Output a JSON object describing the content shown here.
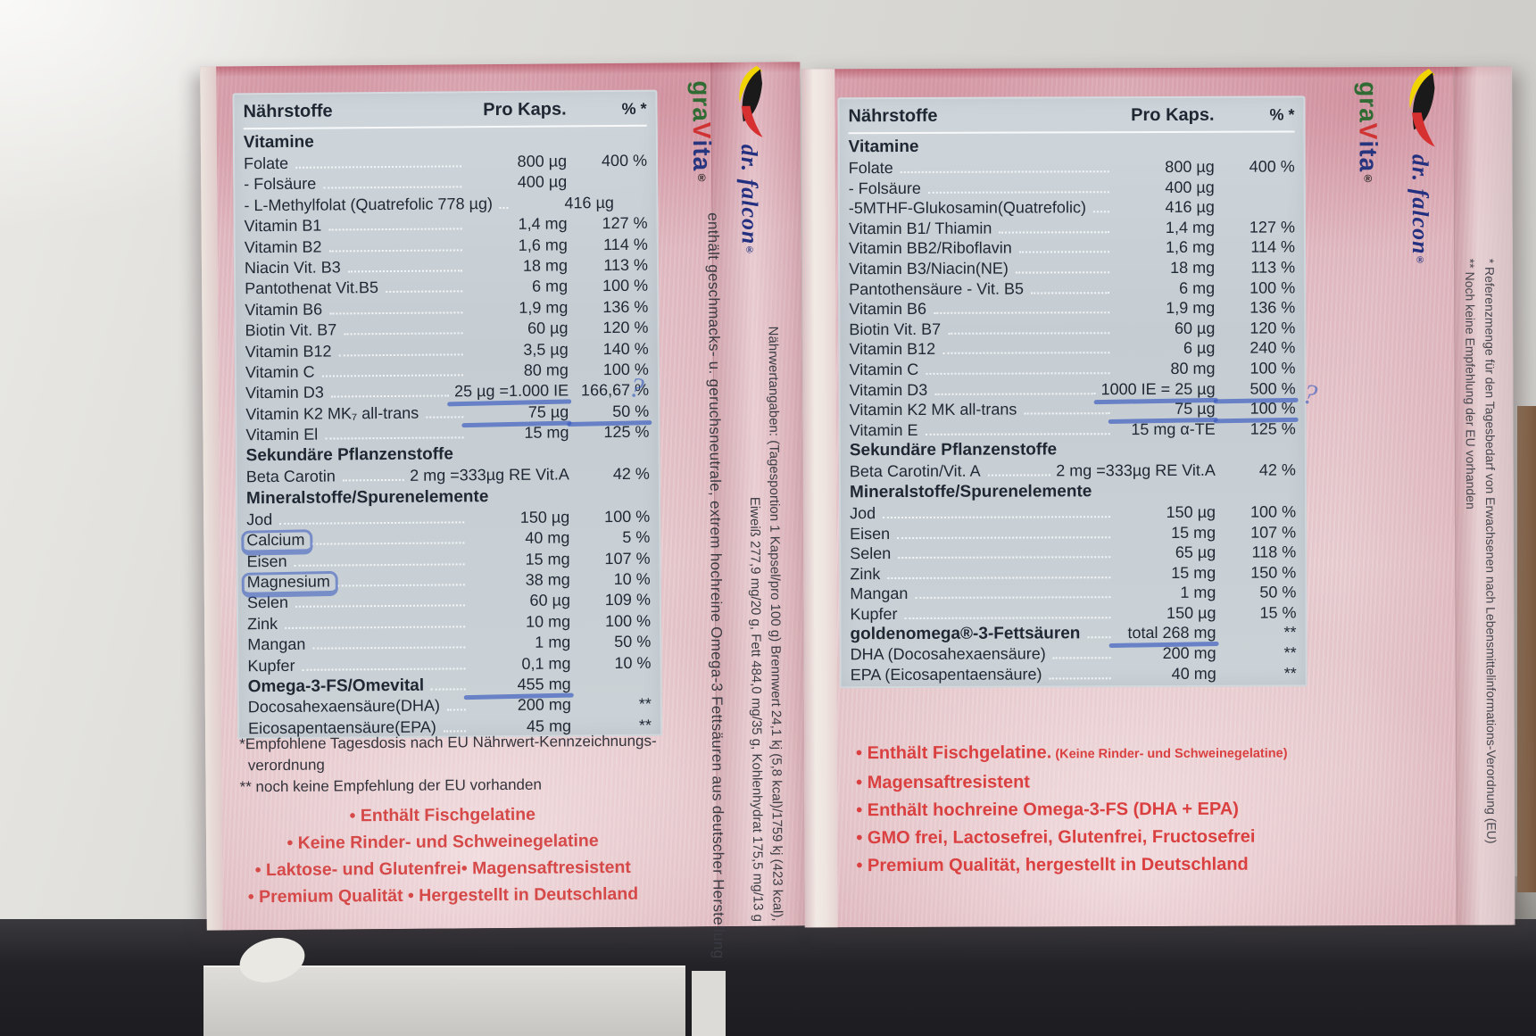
{
  "brand": {
    "gravita": {
      "gra": "gra",
      "v": "V",
      "ita": "ita",
      "reg": "®"
    },
    "falcon": {
      "name": "dr. falcon",
      "reg": "®"
    }
  },
  "annotations": {
    "question_mark": "?"
  },
  "left_box": {
    "table": {
      "header": {
        "nutrients": "Nährstoffe",
        "per_capsule": "Pro Kaps.",
        "percent": "% *"
      },
      "rows": [
        {
          "section": "Vitamine"
        },
        {
          "label": "Folate",
          "value": "800 µg",
          "pct": "400 %"
        },
        {
          "label": "- Folsäure",
          "value": "400 µg",
          "pct": ""
        },
        {
          "label": "- L-Methylfolat (Quatrefolic 778 µg)",
          "value": "416 µg",
          "pct": ""
        },
        {
          "label": "Vitamin B1",
          "value": "1,4 mg",
          "pct": "127 %"
        },
        {
          "label": "Vitamin B2",
          "value": "1,6 mg",
          "pct": "114 %"
        },
        {
          "label": "Niacin Vit. B3",
          "value": "18 mg",
          "pct": "113 %"
        },
        {
          "label": "Pantothenat Vit.B5",
          "value": "6 mg",
          "pct": "100 %"
        },
        {
          "label": "Vitamin B6",
          "value": "1,9 mg",
          "pct": "136 %"
        },
        {
          "label": "Biotin Vit. B7",
          "value": "60 µg",
          "pct": "120 %"
        },
        {
          "label": "Vitamin B12",
          "value": "3,5 µg",
          "pct": "140 %"
        },
        {
          "label": "Vitamin C",
          "value": "80 mg",
          "pct": "100 %"
        },
        {
          "label": "Vitamin D3",
          "value": "25 µg =1.000  IE",
          "pct": "166,67 %",
          "pen_value": true
        },
        {
          "label": "Vitamin K2 MK₇ all-trans",
          "value": "75 µg",
          "pct": "50 %",
          "pen_value": true,
          "pen_pct": true
        },
        {
          "label": "Vitamin El",
          "value": "15 mg",
          "pct": "125 %"
        },
        {
          "section": "Sekundäre Pflanzenstoffe"
        },
        {
          "label": "Beta Carotin",
          "value": "2 mg =333µg  RE  Vit.A",
          "pct": "42 %"
        },
        {
          "section": "Mineralstoffe/Spurenelemente"
        },
        {
          "label": "Jod",
          "value": "150 µg",
          "pct": "100 %"
        },
        {
          "label": "Calcium",
          "value": "40 mg",
          "pct": "5 %",
          "pen_label": true
        },
        {
          "label": "Eisen",
          "value": "15 mg",
          "pct": "107 %"
        },
        {
          "label": "Magnesium",
          "value": "38 mg",
          "pct": "10 %",
          "pen_label": true
        },
        {
          "label": "Selen",
          "value": "60 µg",
          "pct": "109 %"
        },
        {
          "label": "Zink",
          "value": "10 mg",
          "pct": "100 %"
        },
        {
          "label": "Mangan",
          "value": "1 mg",
          "pct": "50 %"
        },
        {
          "label": "Kupfer",
          "value": "0,1 mg",
          "pct": "10 %"
        },
        {
          "label": "Omega-3-FS/Omevital",
          "value": "455 mg",
          "pct": "",
          "bold": true,
          "pen_value": true
        },
        {
          "label": "Docosahexaensäure(DHA)",
          "value": "200 mg",
          "pct": "**"
        },
        {
          "label": "Eicosapentaensäure(EPA)",
          "value": "45 mg",
          "pct": "**"
        }
      ]
    },
    "footnotes": [
      "*Empfohlene Tagesdosis nach EU Nährwert-Kennzeichnungs-",
      "  verordnung",
      "** noch keine Empfehlung der EU vorhanden"
    ],
    "claims": [
      "• Enthält Fischgelatine",
      "• Keine Rinder- und Schweinegelatine",
      "• Laktose- und Glutenfrei• Magensaftresistent",
      "• Premium Qualität • Hergestellt in Deutschland"
    ],
    "side_note": "enthält geschmacks- u. geruchsneutrale, extrem hochreine Omega-3 Fettsäuren aus deutscher Herstellung",
    "nutrition_facts_line1": "Nährwertangaben: (Tagesportion 1 Kapsel/pro 100 g) Brennwert 24,1 kj (5,8 kcal)/1759 kj (423 kcal),",
    "nutrition_facts_line2": "Eiweiß 277,9 mg/20 g, Fett 484,0 mg/35 g, Kohlenhydrat 175,5 mg/13 g"
  },
  "right_box": {
    "table": {
      "header": {
        "nutrients": "Nährstoffe",
        "per_capsule": "Pro Kaps.",
        "percent": "% *"
      },
      "rows": [
        {
          "section": "Vitamine"
        },
        {
          "label": "Folate",
          "value": "800 µg",
          "pct": "400 %"
        },
        {
          "label": "- Folsäure",
          "value": "400 µg",
          "pct": ""
        },
        {
          "label": "-5MTHF-Glukosamin(Quatrefolic)",
          "value": "416 µg",
          "pct": ""
        },
        {
          "label": "Vitamin B1/ Thiamin",
          "value": "1,4 mg",
          "pct": "127 %"
        },
        {
          "label": "Vitamin BB2/Riboflavin",
          "value": "1,6 mg",
          "pct": "114 %"
        },
        {
          "label": "Vitamin B3/Niacin(NE)",
          "value": "18 mg",
          "pct": "113 %"
        },
        {
          "label": "Pantothensäure -  Vit. B5",
          "value": "6 mg",
          "pct": "100 %"
        },
        {
          "label": "Vitamin B6",
          "value": "1,9 mg",
          "pct": "136 %"
        },
        {
          "label": "Biotin Vit. B7",
          "value": "60 µg",
          "pct": "120 %"
        },
        {
          "label": "Vitamin B12",
          "value": "6 µg",
          "pct": "240 %"
        },
        {
          "label": "Vitamin C",
          "value": "80 mg",
          "pct": "100 %"
        },
        {
          "label": "Vitamin D3",
          "value": "1000 IE = 25 µg",
          "pct": "500 %",
          "pen_value": true,
          "pen_pct": true
        },
        {
          "label": "Vitamin K2 MK all-trans",
          "value": "75 µg",
          "pct": "100 %",
          "pen_value": true,
          "pen_pct": true
        },
        {
          "label": "Vitamin E",
          "value": "15 mg α-TE",
          "pct": "125 %"
        },
        {
          "section": "Sekundäre Pflanzenstoffe"
        },
        {
          "label": "Beta Carotin/Vit. A",
          "value": "2 mg =333µg  RE  Vit.A",
          "pct": "42 %"
        },
        {
          "section": "Mineralstoffe/Spurenelemente"
        },
        {
          "label": "Jod",
          "value": "150 µg",
          "pct": "100 %"
        },
        {
          "label": "Eisen",
          "value": "15 mg",
          "pct": "107 %"
        },
        {
          "label": "Selen",
          "value": "65 µg",
          "pct": "118 %"
        },
        {
          "label": "Zink",
          "value": "15 mg",
          "pct": "150 %"
        },
        {
          "label": "Mangan",
          "value": "1 mg",
          "pct": "50 %"
        },
        {
          "label": "Kupfer",
          "value": "150 µg",
          "pct": "15 %"
        },
        {
          "label": "goldenomega®-3-Fettsäuren",
          "value": "total 268 mg",
          "pct": "**",
          "bold": true,
          "pen_value": true
        },
        {
          "label": "DHA (Docosahexaensäure)",
          "value": "200 mg",
          "pct": "**"
        },
        {
          "label": "EPA (Eicosapentaensäure)",
          "value": "40 mg",
          "pct": "**"
        }
      ]
    },
    "claims": [
      {
        "main": "• Enthält Fischgelatine.",
        "note": "(Keine Rinder- und Schweinegelatine)"
      },
      "• Magensaftresistent",
      "• Enthält hochreine Omega-3-FS (DHA + EPA)",
      "• GMO frei, Lactosefrei, Glutenfrei, Fructosefrei",
      "• Premium Qualität, hergestellt in Deutschland"
    ],
    "side_footnote_line1": "* Referenzmenge für den Tagesbedarf von Erwachsenen nach Lebensmittelinformations-Verordnung (EU)",
    "side_footnote_line2": "** Noch keine Empfehlung der EU vorhanden"
  }
}
